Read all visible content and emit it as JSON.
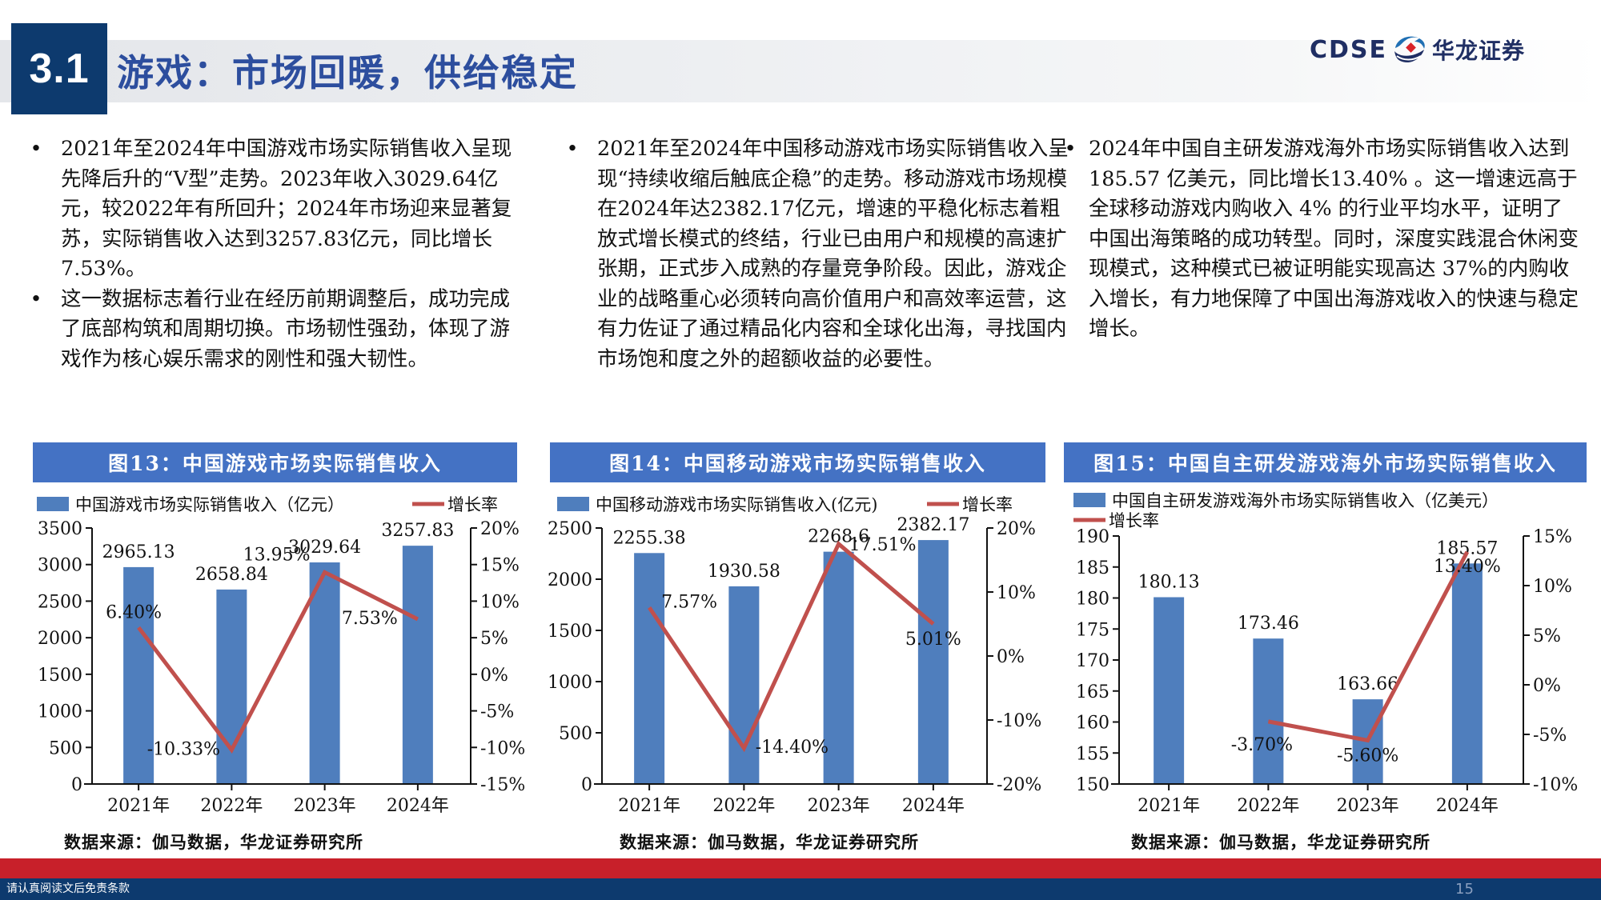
{
  "header": {
    "section_number": "3.1",
    "title": "游戏：市场回暖，供给稳定",
    "logo_en": "CDSE",
    "logo_cn": "华龙证券"
  },
  "columns": [
    {
      "bullets": [
        "2021年至2024年中国游戏市场实际销售收入呈现先降后升的“V型”走势。2023年收入3029.64亿元，较2022年有所回升；2024年市场迎来显著复苏，实际销售收入达到3257.83亿元，同比增长7.53%。",
        "这一数据标志着行业在经历前期调整后，成功完成了底部构筑和周期切换。市场韧性强劲，体现了游戏作为核心娱乐需求的刚性和强大韧性。"
      ]
    },
    {
      "bullets": [
        "2021年至2024年中国移动游戏市场实际销售收入呈现“持续收缩后触底企稳”的走势。移动游戏市场规模在2024年达2382.17亿元，增速的平稳化标志着粗放式增长模式的终结，行业已由用户和规模的高速扩张期，正式步入成熟的存量竞争阶段。因此，游戏企业的战略重心必须转向高价值用户和高效率运营，这有力佐证了通过精品化内容和全球化出海，寻找国内市场饱和度之外的超额收益的必要性。"
      ]
    },
    {
      "bullets": [
        "2024年中国自主研发游戏海外市场实际销售收入达到 185.57 亿美元，同比增长13.40% 。这一增速远高于全球移动游戏内购收入 4% 的行业平均水平，证明了中国出海策略的成功转型。同时，深度实践混合休闲变现模式，这种模式已被证明能实现高达 37%的内购收入增长，有力地保障了中国出海游戏收入的快速与稳定增长。"
      ]
    }
  ],
  "bullet_glyph": "•",
  "figures": [
    {
      "banner": "图13：中国游戏市场实际销售收入",
      "source": "数据来源：伽马数据，华龙证券研究所"
    },
    {
      "banner": "图14：中国移动游戏市场实际销售收入",
      "source": "数据来源：伽马数据，华龙证券研究所"
    },
    {
      "banner": "图15：中国自主研发游戏海外市场实际销售收入",
      "source": "数据来源：伽马数据，华龙证券研究所"
    }
  ],
  "chart_data": [
    {
      "type": "bar",
      "title": "图13：中国游戏市场实际销售收入",
      "categories": [
        "2021年",
        "2022年",
        "2023年",
        "2024年"
      ],
      "series": [
        {
          "name": "中国游戏市场实际销售收入（亿元）",
          "type": "bar",
          "axis": "left",
          "values": [
            2965.13,
            2658.84,
            3029.64,
            3257.83
          ],
          "labels": [
            "2965.13",
            "2658.84",
            "3029.64",
            "3257.83"
          ],
          "color": "#4f7ebd"
        },
        {
          "name": "增长率",
          "type": "line",
          "axis": "right",
          "values": [
            6.4,
            -10.33,
            13.95,
            7.53
          ],
          "labels": [
            "6.40%",
            "-10.33%",
            "13.95%",
            "7.53%"
          ],
          "color": "#c0504d"
        }
      ],
      "y_left": {
        "min": 0,
        "max": 3500,
        "ticks": [
          "0",
          "500",
          "1000",
          "1500",
          "2000",
          "2500",
          "3000",
          "3500"
        ]
      },
      "y_right": {
        "min": -15,
        "max": 20,
        "ticks": [
          "-15%",
          "-10%",
          "-5%",
          "0%",
          "5%",
          "10%",
          "15%",
          "20%"
        ]
      },
      "legend_position": "top",
      "grid": false
    },
    {
      "type": "bar",
      "title": "图14：中国移动游戏市场实际销售收入",
      "categories": [
        "2021年",
        "2022年",
        "2023年",
        "2024年"
      ],
      "series": [
        {
          "name": "中国移动游戏市场实际销售收入(亿元)",
          "type": "bar",
          "axis": "left",
          "values": [
            2255.38,
            1930.58,
            2268.6,
            2382.17
          ],
          "labels": [
            "2255.38",
            "1930.58",
            "2268.6",
            "2382.17"
          ],
          "color": "#4f7ebd"
        },
        {
          "name": "增长率",
          "type": "line",
          "axis": "right",
          "values": [
            7.57,
            -14.4,
            17.51,
            5.01
          ],
          "labels": [
            "7.57%",
            "-14.40%",
            "17.51%",
            "5.01%"
          ],
          "color": "#c0504d"
        }
      ],
      "y_left": {
        "min": 0,
        "max": 2500,
        "ticks": [
          "0",
          "500",
          "1000",
          "1500",
          "2000",
          "2500"
        ]
      },
      "y_right": {
        "min": -20,
        "max": 20,
        "ticks": [
          "-20%",
          "-10%",
          "0%",
          "10%",
          "20%"
        ]
      },
      "legend_position": "top",
      "grid": false
    },
    {
      "type": "bar",
      "title": "图15：中国自主研发游戏海外市场实际销售收入",
      "categories": [
        "2021年",
        "2022年",
        "2023年",
        "2024年"
      ],
      "series": [
        {
          "name": "中国自主研发游戏海外市场实际销售收入（亿美元）",
          "type": "bar",
          "axis": "left",
          "values": [
            180.13,
            173.46,
            163.66,
            185.57
          ],
          "labels": [
            "180.13",
            "173.46",
            "163.66",
            "185.57"
          ],
          "color": "#4f7ebd"
        },
        {
          "name": "增长率",
          "type": "line",
          "axis": "right",
          "values": [
            null,
            -3.7,
            -5.6,
            13.4
          ],
          "labels": [
            "",
            "-3.70%",
            "-5.60%",
            "13.40%"
          ],
          "color": "#c0504d"
        }
      ],
      "y_left": {
        "min": 150,
        "max": 190,
        "ticks": [
          "150",
          "155",
          "160",
          "165",
          "170",
          "175",
          "180",
          "185",
          "190"
        ]
      },
      "y_right": {
        "min": -10,
        "max": 15,
        "ticks": [
          "-10%",
          "-5%",
          "0%",
          "5%",
          "10%",
          "15%"
        ]
      },
      "legend_position": "top",
      "grid": false
    }
  ],
  "footer": {
    "disclaimer": "请认真阅读文后免责条款",
    "page_number": "15"
  }
}
